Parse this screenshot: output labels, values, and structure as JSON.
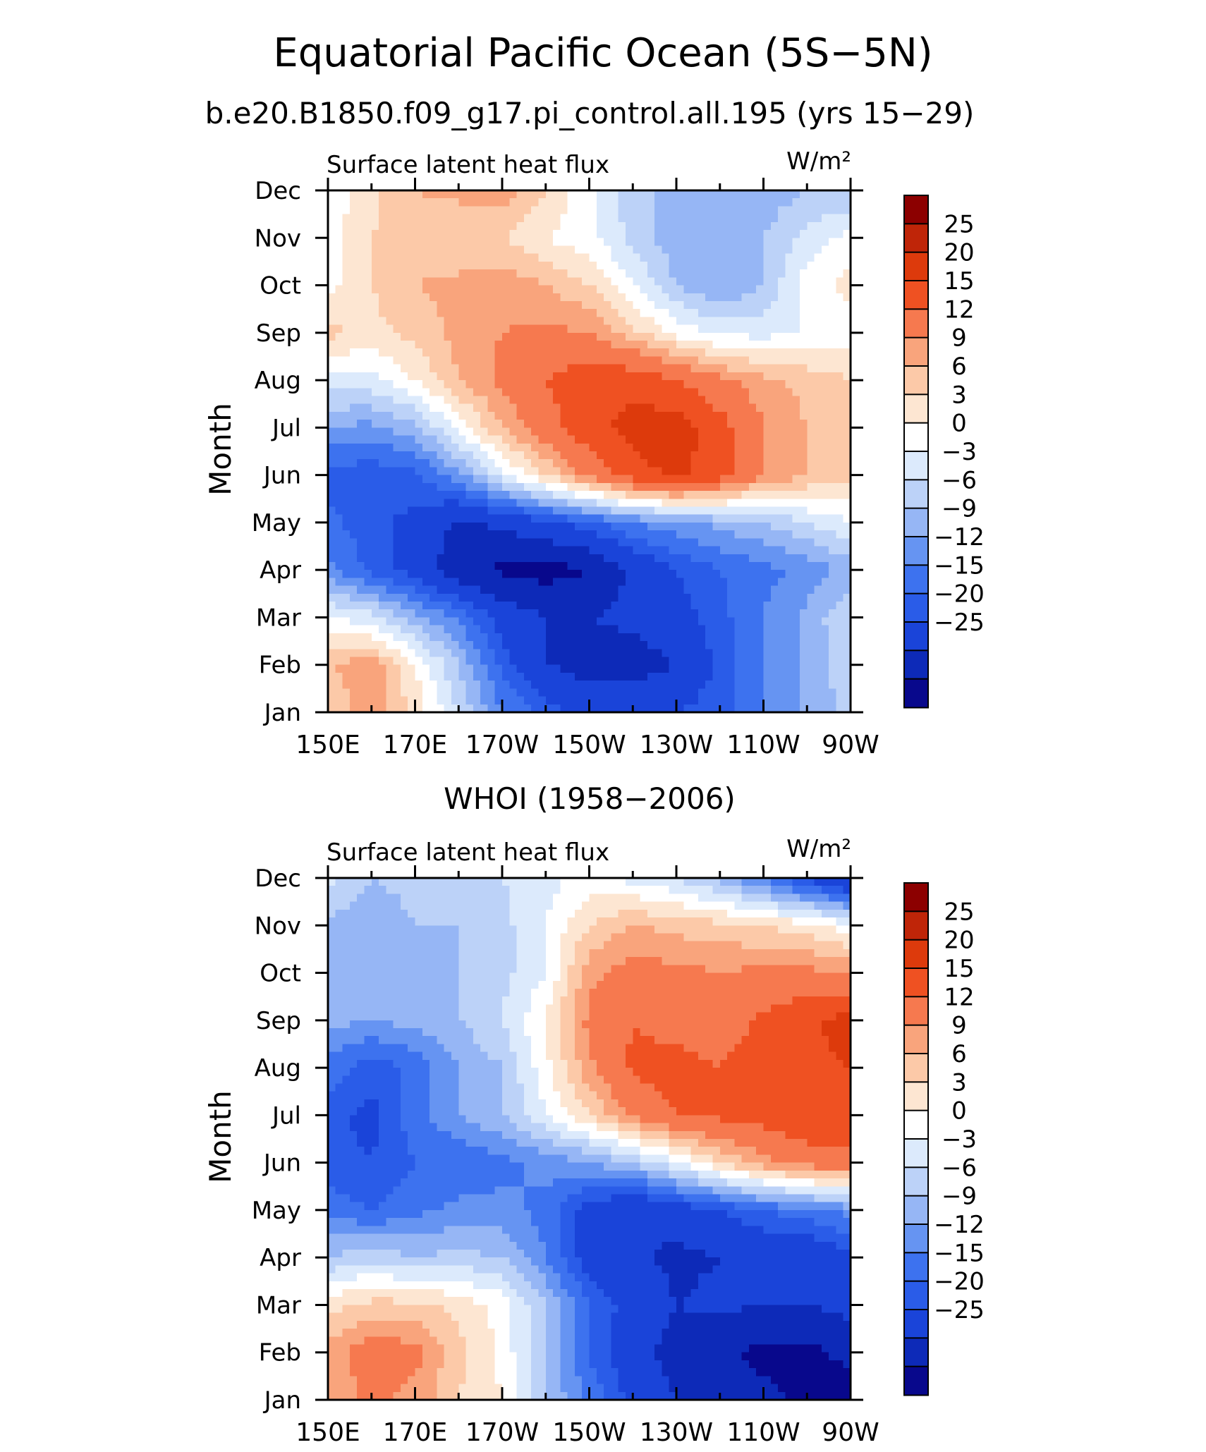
{
  "figure": {
    "title": "Equatorial Pacific Ocean (5S−5N)"
  },
  "colors": {
    "levels": [
      "#08088c",
      "#0d2ab8",
      "#1a44d9",
      "#2a5ce8",
      "#3d72ef",
      "#6694f2",
      "#96b6f5",
      "#bcd2f8",
      "#dceafc",
      "#ffffff",
      "#fde6d2",
      "#fcc9a8",
      "#f9a47c",
      "#f6794f",
      "#ef5122",
      "#dd3a0c",
      "#bf2508",
      "#8c0000"
    ]
  },
  "chart_data": [
    {
      "type": "heatmap",
      "panel_title": "b.e20.B1850.f09_g17.pi_control.all.195 (yrs 15−29)",
      "title": "Surface latent heat flux",
      "units": "W/m²",
      "ylabel": "Month",
      "xlabel": "",
      "x_ticklabels": [
        "150E",
        "170E",
        "170W",
        "150W",
        "130W",
        "110W",
        "90W"
      ],
      "y_ticklabels": [
        "Jan",
        "Feb",
        "Mar",
        "Apr",
        "May",
        "Jun",
        "Jul",
        "Aug",
        "Sep",
        "Oct",
        "Nov",
        "Dec"
      ],
      "xlim_degE": [
        150,
        270
      ],
      "contour_levels": [
        -25,
        -20,
        -15,
        -12,
        -9,
        -6,
        -3,
        0,
        3,
        6,
        9,
        12,
        15,
        20,
        25
      ],
      "colorbar_labels": [
        "25",
        "20",
        "15",
        "12",
        "9",
        "6",
        "3",
        "0",
        "−3",
        "−6",
        "−9",
        "−12",
        "−15",
        "−20",
        "−25"
      ],
      "values": [
        [
          9,
          14,
          8,
          0,
          -9,
          -13,
          -17,
          -17,
          -15,
          -13,
          -9,
          -5,
          -2
        ],
        [
          12,
          14,
          6,
          -3,
          -13,
          -20,
          -22,
          -22,
          -20,
          -14,
          -9,
          -5,
          -1
        ],
        [
          3,
          1,
          -5,
          -10,
          -17,
          -20,
          -20,
          -19,
          -17,
          -13,
          -9,
          -5,
          0
        ],
        [
          -8,
          -13,
          -17,
          -23,
          -26,
          -27,
          -25,
          -19,
          -15,
          -12,
          -10,
          -8,
          -5
        ],
        [
          -11,
          -14,
          -16,
          -21,
          -19,
          -16,
          -13,
          -9,
          -7,
          -5,
          -3,
          0,
          3
        ],
        [
          -13,
          -14,
          -13,
          -7,
          2,
          9,
          17,
          23,
          26,
          22,
          15,
          12,
          10
        ],
        [
          -6,
          -7,
          -4,
          4,
          12,
          18,
          23,
          27,
          28,
          22,
          15,
          12,
          10
        ],
        [
          2,
          2,
          6,
          12,
          16,
          20,
          23,
          23,
          20,
          16,
          13,
          11,
          9
        ],
        [
          10,
          8,
          10,
          13,
          15,
          16,
          15,
          10,
          5,
          2,
          2,
          3,
          5
        ],
        [
          5,
          9,
          12,
          13,
          14,
          12,
          9,
          3,
          -3,
          -6,
          -3,
          5,
          7
        ],
        [
          5,
          9,
          11,
          9,
          9,
          6,
          4,
          -1,
          -5,
          -5,
          -3,
          1,
          4
        ],
        [
          3,
          8,
          12,
          13,
          14,
          9,
          4,
          -2,
          -4,
          -4,
          -5,
          -3,
          -3
        ]
      ]
    },
    {
      "type": "heatmap",
      "panel_title": "WHOI (1958−2006)",
      "title": "Surface latent heat flux",
      "units": "W/m²",
      "ylabel": "Month",
      "xlabel": "",
      "x_ticklabels": [
        "150E",
        "170E",
        "170W",
        "150W",
        "130W",
        "110W",
        "90W"
      ],
      "y_ticklabels": [
        "Jan",
        "Feb",
        "Mar",
        "Apr",
        "May",
        "Jun",
        "Jul",
        "Aug",
        "Sep",
        "Oct",
        "Nov",
        "Dec"
      ],
      "xlim_degE": [
        150,
        270
      ],
      "contour_levels": [
        -25,
        -20,
        -15,
        -12,
        -9,
        -6,
        -3,
        0,
        3,
        6,
        9,
        12,
        15,
        20,
        25
      ],
      "colorbar_labels": [
        "25",
        "20",
        "15",
        "12",
        "9",
        "6",
        "3",
        "0",
        "−3",
        "−6",
        "−9",
        "−12",
        "−15",
        "−20",
        "−25"
      ],
      "values": [
        [
          12,
          16,
          14,
          9,
          6,
          -3,
          -10,
          -16,
          -20,
          -22,
          -24,
          -26,
          -27
        ],
        [
          13,
          18,
          16,
          10,
          5,
          -3,
          -12,
          -18,
          -22,
          -24,
          -26,
          -26,
          -24
        ],
        [
          8,
          10,
          10,
          8,
          5,
          -3,
          -12,
          -17,
          -20,
          -19,
          -20,
          -20,
          -18
        ],
        [
          -3,
          -1,
          -3,
          -2,
          -3,
          -9,
          -17,
          -19,
          -21,
          -20,
          -19,
          -19,
          -16
        ],
        [
          -10,
          -12,
          -10,
          -8,
          -8,
          -10,
          -17,
          -20,
          -18,
          -15,
          -12,
          -10,
          -8
        ],
        [
          -14,
          -15,
          -12,
          -12,
          -10,
          -8,
          -6,
          -3,
          3,
          9,
          14,
          17,
          18
        ],
        [
          -14,
          -16,
          -10,
          -6,
          -3,
          3,
          9,
          16,
          20,
          21,
          22,
          24,
          25
        ],
        [
          -10,
          -14,
          -11,
          -6,
          -3,
          5,
          14,
          21,
          22,
          20,
          23,
          24,
          25
        ],
        [
          -5,
          -6,
          -5,
          -3,
          0,
          6,
          16,
          20,
          18,
          17,
          21,
          24,
          27
        ],
        [
          -3,
          -3,
          -5,
          -3,
          -1,
          3,
          14,
          17,
          16,
          15,
          16,
          16,
          15
        ],
        [
          -4,
          -5,
          -3,
          -3,
          -1,
          3,
          9,
          12,
          11,
          10,
          9,
          7,
          4
        ],
        [
          1,
          -3,
          -2,
          0,
          0,
          2,
          4,
          2,
          0,
          -4,
          -10,
          -16,
          -22
        ]
      ]
    }
  ]
}
